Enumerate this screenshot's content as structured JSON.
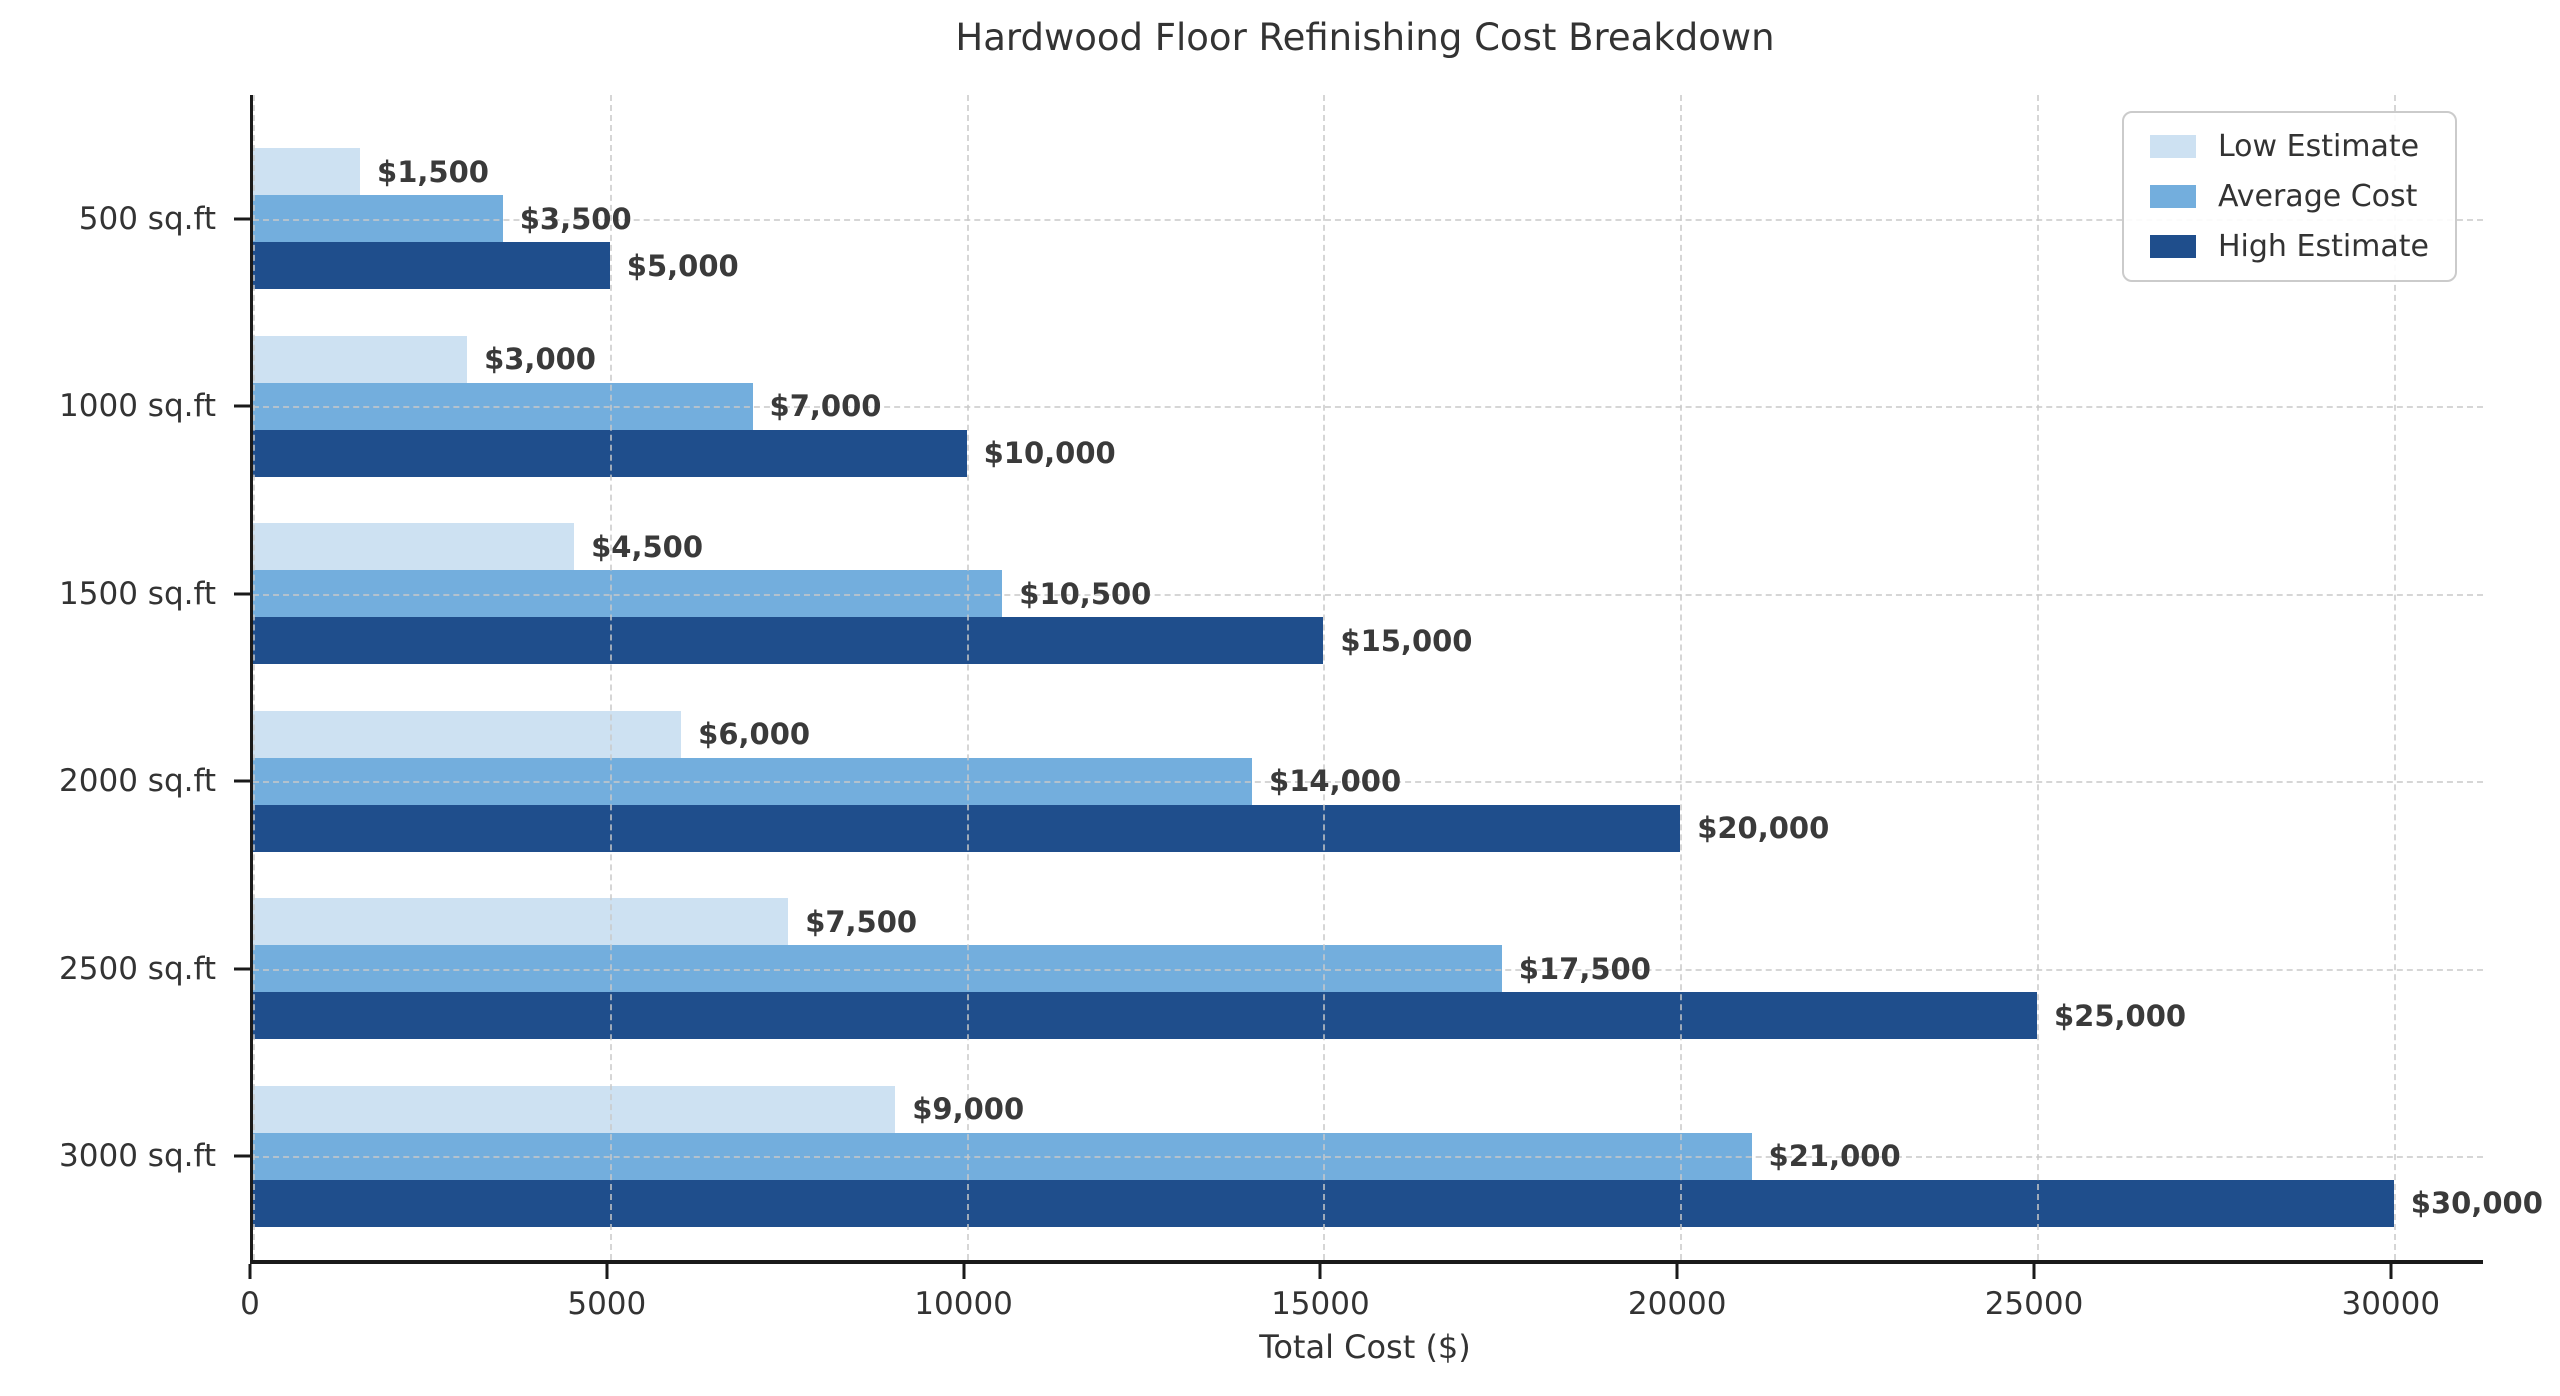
{
  "chart_data": {
    "type": "bar",
    "orientation": "horizontal",
    "title": "Hardwood Floor Refinishing Cost Breakdown",
    "xlabel": "Total Cost ($)",
    "categories": [
      "500 sq.ft",
      "1000 sq.ft",
      "1500 sq.ft",
      "2000 sq.ft",
      "2500 sq.ft",
      "3000 sq.ft"
    ],
    "series": [
      {
        "name": "Low Estimate",
        "color": "#cde1f2",
        "values": [
          1500,
          3000,
          4500,
          6000,
          7500,
          9000
        ],
        "value_labels": [
          "$1,500",
          "$3,000",
          "$4,500",
          "$6,000",
          "$7,500",
          "$9,000"
        ]
      },
      {
        "name": "Average Cost",
        "color": "#73aedd",
        "values": [
          3500,
          7000,
          10500,
          14000,
          17500,
          21000
        ],
        "value_labels": [
          "$3,500",
          "$7,000",
          "$10,500",
          "$14,000",
          "$17,500",
          "$21,000"
        ]
      },
      {
        "name": "High Estimate",
        "color": "#1f4e8c",
        "values": [
          5000,
          10000,
          15000,
          20000,
          25000,
          30000
        ],
        "value_labels": [
          "$5,000",
          "$10,000",
          "$15,000",
          "$20,000",
          "$25,000",
          "$30,000"
        ]
      }
    ],
    "x_ticks": [
      0,
      5000,
      10000,
      15000,
      20000,
      25000,
      30000
    ],
    "x_tick_labels": [
      "0",
      "5000",
      "10000",
      "15000",
      "20000",
      "25000",
      "30000"
    ],
    "xlim": [
      0,
      31250
    ],
    "grid": {
      "axes": "both",
      "style": "dashed",
      "color": "#c9c9c9"
    },
    "legend_position": "upper right",
    "text_color": "#333333",
    "value_label_color": "#3a3a3a"
  }
}
